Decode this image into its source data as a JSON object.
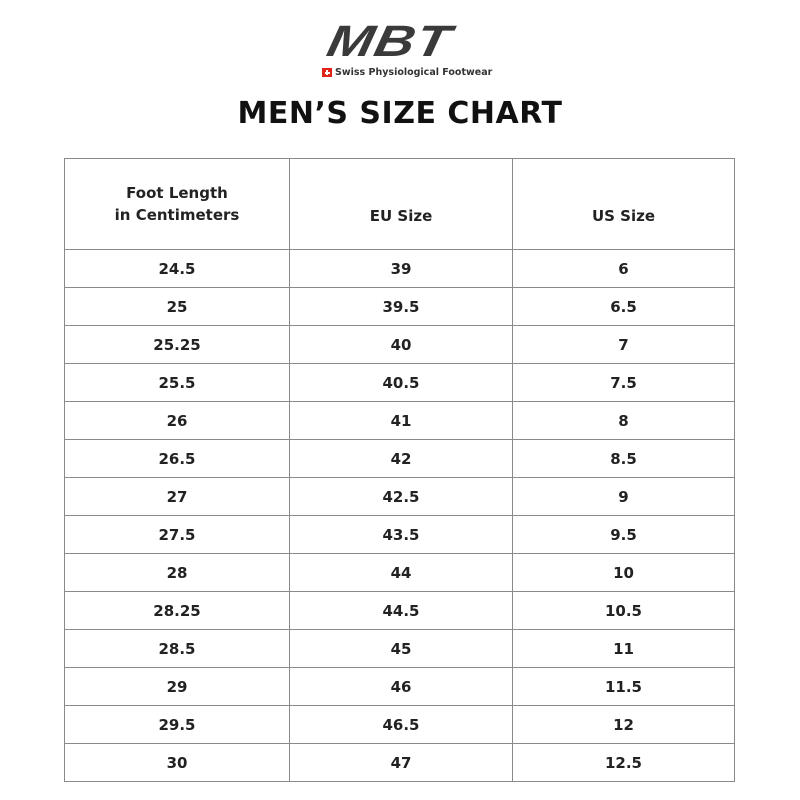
{
  "logo": {
    "brand": "MBT",
    "tagline": "Swiss Physiological Footwear",
    "accent": "#e2231a"
  },
  "title": "MEN’S SIZE CHART",
  "table": {
    "headers": [
      [
        "Foot Length",
        "in Centimeters"
      ],
      [
        "EU Size"
      ],
      [
        "US Size"
      ]
    ],
    "rows": [
      [
        "24.5",
        "39",
        "6"
      ],
      [
        "25",
        "39.5",
        "6.5"
      ],
      [
        "25.25",
        "40",
        "7"
      ],
      [
        "25.5",
        "40.5",
        "7.5"
      ],
      [
        "26",
        "41",
        "8"
      ],
      [
        "26.5",
        "42",
        "8.5"
      ],
      [
        "27",
        "42.5",
        "9"
      ],
      [
        "27.5",
        "43.5",
        "9.5"
      ],
      [
        "28",
        "44",
        "10"
      ],
      [
        "28.25",
        "44.5",
        "10.5"
      ],
      [
        "28.5",
        "45",
        "11"
      ],
      [
        "29",
        "46",
        "11.5"
      ],
      [
        "29.5",
        "46.5",
        "12"
      ],
      [
        "30",
        "47",
        "12.5"
      ]
    ]
  }
}
